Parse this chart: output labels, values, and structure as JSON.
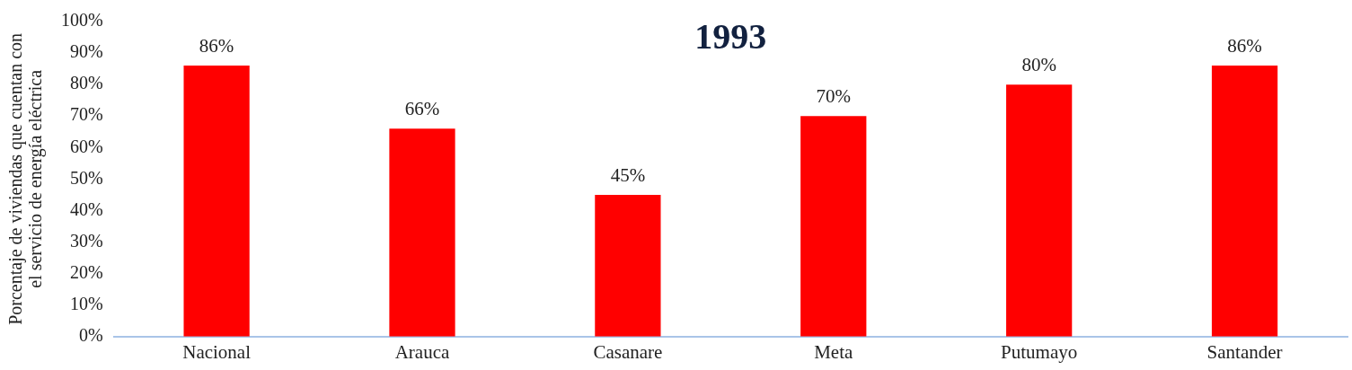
{
  "chart_data": {
    "type": "bar",
    "title": "1993",
    "ylabel": "Porcentaje de viviendas que cuentan con el servicio de energía eléctrica",
    "categories": [
      "Nacional",
      "Arauca",
      "Casanare",
      "Meta",
      "Putumayo",
      "Santander"
    ],
    "values": [
      86,
      66,
      45,
      70,
      80,
      86
    ],
    "color": "#ff0000",
    "value_labels": [
      "86%",
      "66%",
      "45%",
      "70%",
      "80%",
      "86%"
    ],
    "ylim": [
      0,
      100
    ],
    "yticks": [
      {
        "value": 0,
        "label": "0%"
      },
      {
        "value": 10,
        "label": "10%"
      },
      {
        "value": 20,
        "label": "20%"
      },
      {
        "value": 30,
        "label": "30%"
      },
      {
        "value": 40,
        "label": "40%"
      },
      {
        "value": 50,
        "label": "50%"
      },
      {
        "value": 60,
        "label": "60%"
      },
      {
        "value": 70,
        "label": "70%"
      },
      {
        "value": 80,
        "label": "80%"
      },
      {
        "value": 90,
        "label": "90%"
      },
      {
        "value": 100,
        "label": "100%"
      }
    ],
    "grid": false,
    "legend": false
  }
}
